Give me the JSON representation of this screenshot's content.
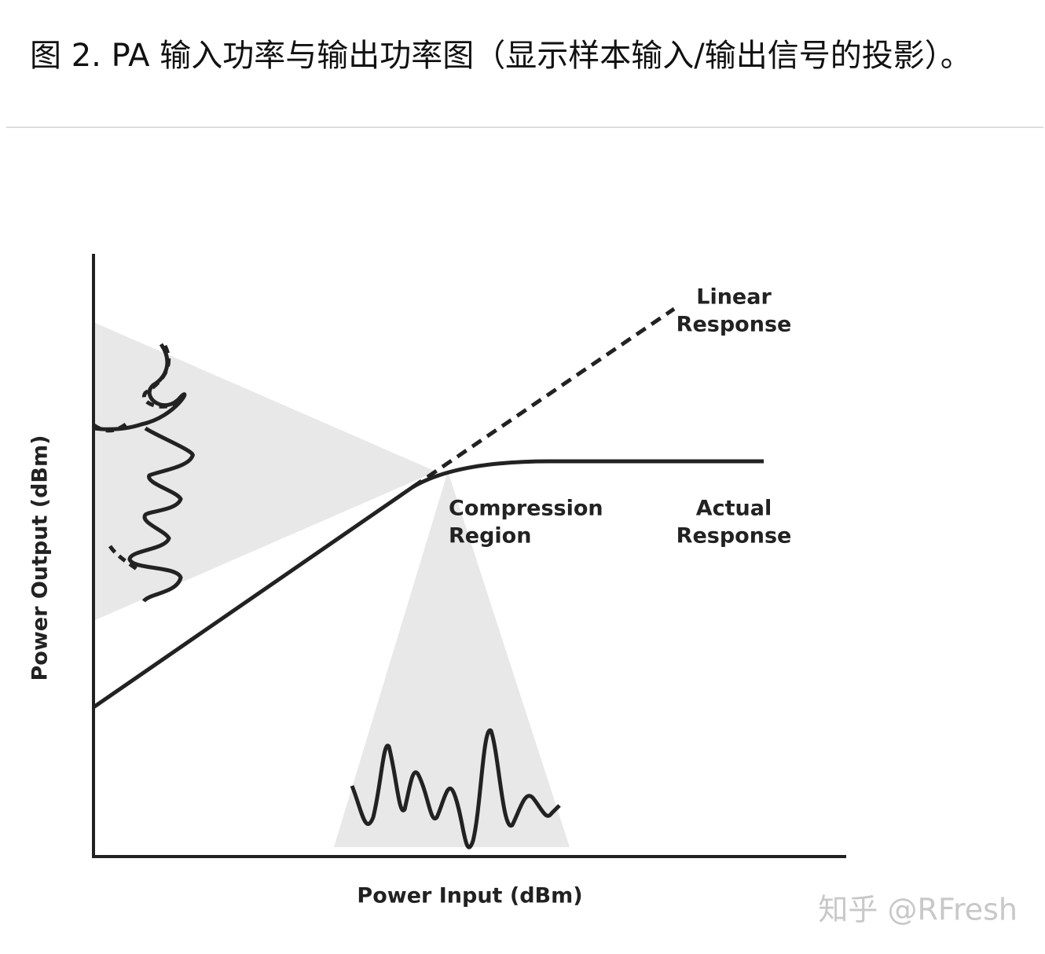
{
  "header": {
    "title": "图 2. PA 输入功率与输出功率图（显示样本输入/输出信号的投影）。"
  },
  "diagram": {
    "x_axis_label": "Power Input (dBm)",
    "y_axis_label": "Power Output (dBm)",
    "annotations": {
      "linear": [
        "Linear",
        "Response"
      ],
      "compression": [
        "Compression",
        "Region"
      ],
      "actual": [
        "Actual",
        "Response"
      ]
    }
  },
  "watermark": "知乎 @RFresh"
}
